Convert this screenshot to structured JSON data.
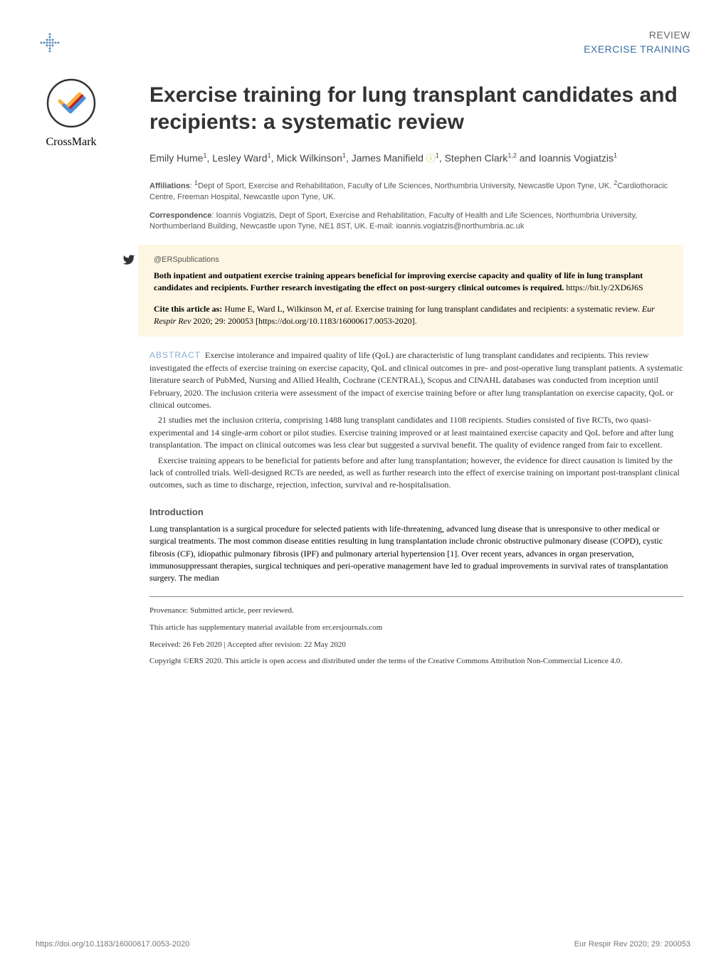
{
  "header": {
    "category": "REVIEW",
    "topic": "EXERCISE TRAINING"
  },
  "crossmark_label": "CrossMark",
  "title": "Exercise training for lung transplant candidates and recipients: a systematic review",
  "authors_html": "Emily Hume<sup>1</sup>, Lesley Ward<sup>1</sup>, Mick Wilkinson<sup>1</sup>, James Manifield <span class='orcid'>&#9432;</span><sup>1</sup>, Stephen Clark<sup>1,2</sup> and Ioannis Vogiatzis<sup>1</sup>",
  "affiliations_html": "<span class='bold-lead'>Affiliations</span>: <sup>1</sup>Dept of Sport, Exercise and Rehabilitation, Faculty of Life Sciences, Northumbria University, Newcastle Upon Tyne, UK. <sup>2</sup>Cardiothoracic Centre, Freeman Hospital, Newcastle upon Tyne, UK.",
  "correspondence_html": "<span class='bold-lead'>Correspondence</span>: Ioannis Vogiatzis, Dept of Sport, Exercise and Rehabilitation, Faculty of Health and Life Sciences, Northumbria University, Northumberland Building, Newcastle upon Tyne, NE1 8ST, UK. E-mail: ioannis.vogiatzis@northumbria.ac.uk",
  "ers_handle": "@ERSpublications",
  "tweet_html": "Both inpatient and outpatient exercise training appears beneficial for improving exercise capacity and quality of life in lung transplant candidates and recipients. Further research investigating the effect on post-surgery clinical outcomes is required. <span style='font-weight:normal;'>https://bit.ly/2XD6J6S</span>",
  "cite_html": "<b>Cite this article as:</b> Hume E, Ward L, Wilkinson M, <i>et al.</i> Exercise training for lung transplant candidates and recipients: a systematic review. <i>Eur Respir Rev</i> 2020; 29: 200053 [https://doi.org/10.1183/16000617.0053-2020].",
  "abstract_label": "ABSTRACT",
  "abstract_p1": "Exercise intolerance and impaired quality of life (QoL) are characteristic of lung transplant candidates and recipients. This review investigated the effects of exercise training on exercise capacity, QoL and clinical outcomes in pre- and post-operative lung transplant patients.  A systematic literature search of PubMed, Nursing and Allied Health, Cochrane (CENTRAL), Scopus and CINAHL databases was conducted from inception until February, 2020. The inclusion criteria were assessment of the impact of exercise training before or after lung transplantation on exercise capacity, QoL or clinical outcomes.",
  "abstract_p2": "21 studies met the inclusion criteria, comprising 1488 lung transplant candidates and 1108 recipients. Studies consisted of five RCTs, two quasi-experimental and 14 single-arm cohort or pilot studies. Exercise training improved or at least maintained exercise capacity and QoL before and after lung transplantation. The impact on clinical outcomes was less clear but suggested a survival benefit. The quality of evidence ranged from fair to excellent.",
  "abstract_p3": "Exercise training appears to be beneficial for patients before and after lung transplantation; however, the evidence for direct causation is limited by the lack of controlled trials. Well-designed RCTs are needed, as well as further research into the effect of exercise training on important post-transplant clinical outcomes, such as time to discharge, rejection, infection, survival and re-hospitalisation.",
  "intro_heading": "Introduction",
  "intro_body": "Lung transplantation is a surgical procedure for selected patients with life-threatening, advanced lung disease that is unresponsive to other medical or surgical treatments. The most common disease entities resulting in lung transplantation include chronic obstructive pulmonary disease (COPD), cystic fibrosis (CF), idiopathic pulmonary fibrosis (IPF) and pulmonary arterial hypertension [1]. Over recent years, advances in organ preservation, immunosuppressant therapies, surgical techniques and peri-operative management have led to gradual improvements in survival rates of transplantation surgery. The median",
  "footnotes": {
    "provenance": "Provenance: Submitted article, peer reviewed.",
    "supplementary": "This article has supplementary material available from err.ersjournals.com",
    "dates": "Received: 26 Feb 2020 | Accepted after revision: 22 May 2020",
    "copyright": "Copyright ©ERS 2020. This article is open access and distributed under the terms of the Creative Commons Attribution Non-Commercial Licence 4.0."
  },
  "footer": {
    "doi": "https://doi.org/10.1183/16000617.0053-2020",
    "journal_ref": "Eur Respir Rev 2020; 29: 200053"
  },
  "colors": {
    "background": "#ffffff",
    "category": "#666666",
    "topic_accent": "#3b6ea5",
    "yellow_block": "#fef6e3",
    "abstract_label": "#8ab0d6",
    "section_heading": "#555555",
    "footer": "#777777",
    "orcid": "#a8ce3c",
    "ers_logo_blue": "#5a8db8"
  }
}
